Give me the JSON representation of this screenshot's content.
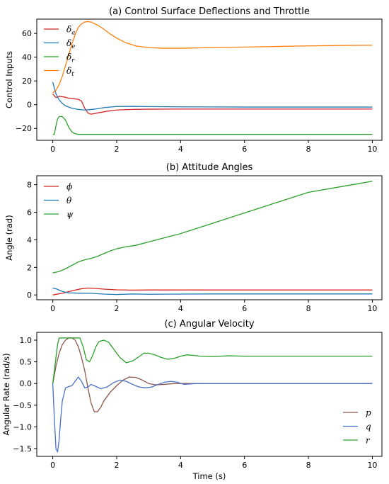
{
  "chart_data": [
    {
      "type": "line",
      "title": "(a) Control Surface Deflections and Throttle",
      "xlabel": "",
      "ylabel": "Control Inputs",
      "xlim": [
        -0.5,
        10.3
      ],
      "ylim": [
        -30,
        72
      ],
      "xticks": [
        0,
        2,
        4,
        6,
        8,
        10
      ],
      "yticks": [
        -20,
        0,
        20,
        40,
        60
      ],
      "legend_position": "upper-left",
      "series": [
        {
          "name": "δa",
          "base": "δ",
          "sub": "a",
          "color": "#d62728",
          "x": [
            0,
            0.1,
            0.2,
            0.35,
            0.5,
            0.65,
            0.8,
            0.9,
            1.0,
            1.1,
            1.2,
            1.4,
            1.7,
            2.0,
            2.5,
            3.0,
            4.0,
            5.0,
            6.0,
            7.0,
            8.0,
            9.0,
            10.0
          ],
          "y": [
            9,
            6,
            7,
            6.5,
            5.5,
            5,
            4.5,
            3,
            -3,
            -7,
            -8,
            -7,
            -5.5,
            -4.5,
            -4,
            -3.8,
            -3.7,
            -3.7,
            -3.7,
            -3.7,
            -3.7,
            -3.7,
            -3.7
          ]
        },
        {
          "name": "δe",
          "base": "δ",
          "sub": "e",
          "color": "#1f77b4",
          "x": [
            0,
            0.05,
            0.1,
            0.2,
            0.3,
            0.4,
            0.6,
            0.8,
            1.0,
            1.3,
            1.6,
            2.0,
            2.5,
            3.0,
            4.0,
            5.0,
            6.0,
            7.0,
            8.0,
            9.0,
            10.0
          ],
          "y": [
            19,
            14,
            9,
            4,
            1,
            -1,
            -3,
            -4,
            -4.5,
            -3.8,
            -2.5,
            -1.5,
            -1.4,
            -1.6,
            -1.8,
            -1.9,
            -2,
            -2,
            -2,
            -2,
            -2
          ]
        },
        {
          "name": "δr",
          "base": "δ",
          "sub": "r",
          "color": "#2ca02c",
          "x": [
            0,
            0.05,
            0.1,
            0.15,
            0.2,
            0.3,
            0.4,
            0.5,
            0.6,
            0.7,
            0.8,
            1.0,
            1.5,
            2.0,
            3.0,
            4.0,
            5.0,
            6.0,
            7.0,
            8.0,
            9.0,
            10.0
          ],
          "y": [
            -25,
            -25,
            -18,
            -12,
            -10,
            -10,
            -13,
            -19,
            -23,
            -24.5,
            -25,
            -25,
            -25,
            -25,
            -25,
            -25,
            -25,
            -25,
            -25,
            -25,
            -25,
            -25
          ]
        },
        {
          "name": "δt",
          "base": "δ",
          "sub": "t",
          "color": "#ff7f0e",
          "x": [
            0,
            0.1,
            0.2,
            0.3,
            0.4,
            0.5,
            0.6,
            0.7,
            0.8,
            0.9,
            1.0,
            1.1,
            1.2,
            1.4,
            1.6,
            1.8,
            2.0,
            2.3,
            2.6,
            3.0,
            3.5,
            4.0,
            5.0,
            6.0,
            7.0,
            8.0,
            9.0,
            10.0
          ],
          "y": [
            10,
            12,
            17,
            24,
            33,
            42,
            51,
            59,
            65,
            68,
            69.5,
            70,
            69.5,
            67,
            63.5,
            59.5,
            56,
            52,
            49.5,
            48,
            47.5,
            47.5,
            48,
            48.5,
            49,
            49.5,
            49.8,
            50
          ]
        }
      ]
    },
    {
      "type": "line",
      "title": "(b) Attitude Angles",
      "xlabel": "",
      "ylabel": "Angle (rad)",
      "xlim": [
        -0.5,
        10.3
      ],
      "ylim": [
        -0.35,
        8.65
      ],
      "xticks": [
        0,
        2,
        4,
        6,
        8,
        10
      ],
      "yticks": [
        0,
        2,
        4,
        6,
        8
      ],
      "legend_position": "upper-left",
      "series": [
        {
          "name": "ϕ",
          "base": "ϕ",
          "sub": "",
          "color": "#d62728",
          "x": [
            0,
            0.3,
            0.6,
            0.9,
            1.1,
            1.3,
            1.6,
            2.0,
            2.5,
            3.0,
            4.0,
            5.0,
            6.0,
            7.0,
            8.0,
            9.0,
            10.0
          ],
          "y": [
            0,
            0.12,
            0.3,
            0.45,
            0.5,
            0.48,
            0.42,
            0.37,
            0.35,
            0.36,
            0.36,
            0.36,
            0.36,
            0.36,
            0.36,
            0.36,
            0.36
          ]
        },
        {
          "name": "θ",
          "base": "θ",
          "sub": "",
          "color": "#1f77b4",
          "x": [
            0,
            0.1,
            0.2,
            0.3,
            0.5,
            0.8,
            1.2,
            1.6,
            2.0,
            2.5,
            3.0,
            4.0,
            5.0,
            6.0,
            7.0,
            8.0,
            9.0,
            10.0
          ],
          "y": [
            0.5,
            0.45,
            0.35,
            0.25,
            0.15,
            0.13,
            0.12,
            0.06,
            0.03,
            0.07,
            0.05,
            0.06,
            0.07,
            0.07,
            0.07,
            0.07,
            0.07,
            0.07
          ]
        },
        {
          "name": "ψ",
          "base": "ψ",
          "sub": "",
          "color": "#2ca02c",
          "x": [
            0,
            0.2,
            0.4,
            0.6,
            0.8,
            1.0,
            1.2,
            1.4,
            1.6,
            1.8,
            2.0,
            2.3,
            2.6,
            3.0,
            3.5,
            4.0,
            5.0,
            6.0,
            7.0,
            8.0,
            9.0,
            10.0
          ],
          "y": [
            1.6,
            1.7,
            1.9,
            2.15,
            2.4,
            2.55,
            2.65,
            2.8,
            3.0,
            3.2,
            3.35,
            3.5,
            3.6,
            3.85,
            4.15,
            4.45,
            5.2,
            5.95,
            6.7,
            7.45,
            7.85,
            8.25
          ]
        }
      ]
    },
    {
      "type": "line",
      "title": "(c) Angular Velocity",
      "xlabel": "Time (s)",
      "ylabel": "Angular Rate (rad/s)",
      "xlim": [
        -0.5,
        10.3
      ],
      "ylim": [
        -1.68,
        1.18
      ],
      "xticks": [
        0,
        2,
        4,
        6,
        8,
        10
      ],
      "yticks": [
        -1.5,
        -1.0,
        -0.5,
        0.0,
        0.5,
        1.0
      ],
      "ytick_labels": [
        "−1.5",
        "−1.0",
        "−0.5",
        "0.0",
        "0.5",
        "1.0"
      ],
      "legend_position": "lower-right",
      "series": [
        {
          "name": "p",
          "base": "p",
          "sub": "",
          "color": "#8c564b",
          "x": [
            0,
            0.1,
            0.2,
            0.3,
            0.4,
            0.5,
            0.6,
            0.7,
            0.8,
            0.9,
            1.0,
            1.1,
            1.2,
            1.3,
            1.4,
            1.5,
            1.6,
            1.8,
            2.0,
            2.2,
            2.4,
            2.6,
            2.8,
            3.0,
            3.2,
            3.5,
            3.8,
            4.0,
            4.5,
            5.0,
            6.0,
            7.0,
            8.0,
            9.0,
            10.0
          ],
          "y": [
            0,
            0.4,
            0.7,
            0.9,
            1.0,
            1.05,
            1.05,
            1.0,
            0.85,
            0.6,
            0.3,
            -0.1,
            -0.45,
            -0.65,
            -0.65,
            -0.55,
            -0.4,
            -0.2,
            -0.05,
            0.08,
            0.15,
            0.14,
            0.08,
            0.0,
            -0.03,
            -0.02,
            0.0,
            0.0,
            0.0,
            0.0,
            0.0,
            0.0,
            0.0,
            0.0,
            0.0
          ]
        },
        {
          "name": "q",
          "base": "q",
          "sub": "",
          "color": "#4a6fc8",
          "x": [
            0,
            0.05,
            0.1,
            0.15,
            0.2,
            0.25,
            0.3,
            0.4,
            0.5,
            0.6,
            0.7,
            0.8,
            0.9,
            1.0,
            1.1,
            1.2,
            1.3,
            1.5,
            1.7,
            1.9,
            2.1,
            2.3,
            2.5,
            2.7,
            2.9,
            3.1,
            3.3,
            3.5,
            3.7,
            3.9,
            4.1,
            4.5,
            5.0,
            6.0,
            7.0,
            8.0,
            9.0,
            10.0
          ],
          "y": [
            0,
            -0.8,
            -1.5,
            -1.58,
            -1.3,
            -0.8,
            -0.4,
            -0.1,
            -0.07,
            -0.05,
            0.05,
            0.15,
            0.05,
            -0.1,
            -0.08,
            -0.02,
            -0.05,
            -0.12,
            -0.08,
            0.02,
            0.08,
            0.05,
            -0.02,
            -0.08,
            -0.1,
            -0.08,
            -0.02,
            0.03,
            0.05,
            0.03,
            -0.02,
            0.0,
            0.0,
            0.0,
            0.0,
            0.0,
            0.0,
            0.0
          ]
        },
        {
          "name": "r",
          "base": "r",
          "sub": "",
          "color": "#2ca02c",
          "x": [
            0,
            0.1,
            0.15,
            0.2,
            0.3,
            0.5,
            0.7,
            0.85,
            0.95,
            1.05,
            1.15,
            1.25,
            1.35,
            1.45,
            1.6,
            1.75,
            1.9,
            2.1,
            2.3,
            2.5,
            2.7,
            2.85,
            3.0,
            3.2,
            3.4,
            3.6,
            3.8,
            4.0,
            4.2,
            4.4,
            4.6,
            5.0,
            5.5,
            6.0,
            7.0,
            8.0,
            9.0,
            10.0
          ],
          "y": [
            0,
            0.6,
            0.9,
            1.05,
            1.05,
            1.05,
            1.05,
            1.05,
            0.85,
            0.55,
            0.5,
            0.65,
            0.85,
            0.97,
            1.0,
            0.95,
            0.8,
            0.6,
            0.48,
            0.52,
            0.62,
            0.7,
            0.7,
            0.66,
            0.6,
            0.56,
            0.58,
            0.63,
            0.66,
            0.65,
            0.63,
            0.62,
            0.64,
            0.63,
            0.63,
            0.63,
            0.63,
            0.63
          ]
        }
      ]
    }
  ]
}
